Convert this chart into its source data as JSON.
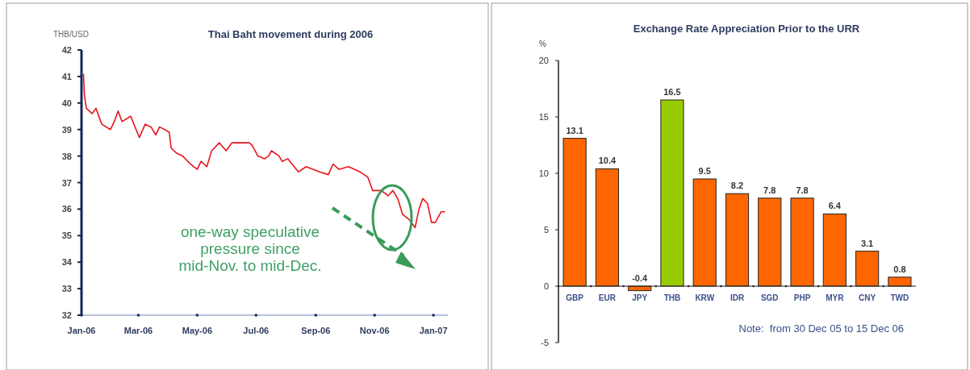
{
  "chart_data": [
    {
      "type": "line",
      "title": "Thai Baht movement during 2006",
      "ylabel": "THB/USD",
      "x": [
        "2006-01-03",
        "2006-01-04",
        "2006-01-06",
        "2006-01-12",
        "2006-01-16",
        "2006-01-22",
        "2006-01-31",
        "2006-02-04",
        "2006-02-08",
        "2006-02-12",
        "2006-02-21",
        "2006-03-02",
        "2006-03-08",
        "2006-03-14",
        "2006-03-19",
        "2006-03-23",
        "2006-04-02",
        "2006-04-04",
        "2006-04-10",
        "2006-04-16",
        "2006-04-24",
        "2006-05-01",
        "2006-05-05",
        "2006-05-11",
        "2006-05-16",
        "2006-05-24",
        "2006-05-31",
        "2006-06-06",
        "2006-06-16",
        "2006-06-24",
        "2006-06-27",
        "2006-07-03",
        "2006-07-10",
        "2006-07-14",
        "2006-07-17",
        "2006-07-25",
        "2006-07-28",
        "2006-08-03",
        "2006-08-14",
        "2006-08-22",
        "2006-09-05",
        "2006-09-14",
        "2006-09-19",
        "2006-09-25",
        "2006-10-05",
        "2006-10-17",
        "2006-10-25",
        "2006-10-30",
        "2006-11-08",
        "2006-11-15",
        "2006-11-20",
        "2006-11-25",
        "2006-11-30",
        "2006-12-07",
        "2006-12-13",
        "2006-12-17",
        "2006-12-21",
        "2006-12-26",
        "2006-12-30",
        "2007-01-03",
        "2007-01-09",
        "2007-01-13"
      ],
      "series": [
        {
          "color": "#e8141b",
          "values": [
            41.1,
            40.3,
            39.8,
            39.6,
            39.8,
            39.2,
            39.0,
            39.3,
            39.7,
            39.3,
            39.5,
            38.7,
            39.2,
            39.1,
            38.8,
            39.1,
            38.9,
            38.3,
            38.1,
            38.0,
            37.7,
            37.5,
            37.8,
            37.6,
            38.2,
            38.5,
            38.2,
            38.5,
            38.5,
            38.5,
            38.4,
            38.0,
            37.9,
            38.0,
            38.2,
            38.0,
            37.8,
            37.9,
            37.4,
            37.6,
            37.4,
            37.3,
            37.7,
            37.5,
            37.6,
            37.4,
            37.2,
            36.7,
            36.7,
            36.5,
            36.7,
            36.4,
            35.8,
            35.6,
            35.3,
            36.0,
            36.4,
            36.2,
            35.5,
            35.5,
            35.9,
            35.9
          ]
        }
      ],
      "xlim": [
        "2006-01-01",
        "2007-01-16"
      ],
      "xticks": [
        {
          "value": "2006-01-01",
          "label": "Jan-06"
        },
        {
          "value": "2006-03-01",
          "label": "Mar-06"
        },
        {
          "value": "2006-05-01",
          "label": "May-06"
        },
        {
          "value": "2006-07-01",
          "label": "Jul-06"
        },
        {
          "value": "2006-09-01",
          "label": "Sep-06"
        },
        {
          "value": "2006-11-01",
          "label": "Nov-06"
        },
        {
          "value": "2007-01-01",
          "label": "Jan-07"
        }
      ],
      "ylim": [
        32,
        42
      ],
      "yticks": [
        32,
        33,
        34,
        35,
        36,
        37,
        38,
        39,
        40,
        41,
        42
      ],
      "annotations": [
        "one-way speculative pressure since mid-Nov. to mid-Dec."
      ]
    },
    {
      "type": "bar",
      "title": "Exchange Rate Appreciation Prior to the URR",
      "ylabel": "%",
      "categories": [
        "GBP",
        "EUR",
        "JPY",
        "THB",
        "KRW",
        "IDR",
        "SGD",
        "PHP",
        "MYR",
        "CNY",
        "TWD"
      ],
      "values": [
        13.1,
        10.4,
        -0.4,
        16.5,
        9.5,
        8.2,
        7.8,
        7.8,
        6.4,
        3.1,
        0.8
      ],
      "colors": [
        "#ff6600",
        "#ff6600",
        "#ff6600",
        "#99cc00",
        "#ff6600",
        "#ff6600",
        "#ff6600",
        "#ff6600",
        "#ff6600",
        "#ff6600",
        "#ff6600"
      ],
      "data_labels": true,
      "ylim": [
        -5,
        20
      ],
      "yticks": [
        -5,
        0,
        5,
        10,
        15,
        20
      ],
      "annotations": [
        "Note:  from 30 Dec 05 to 15 Dec 06"
      ]
    }
  ]
}
